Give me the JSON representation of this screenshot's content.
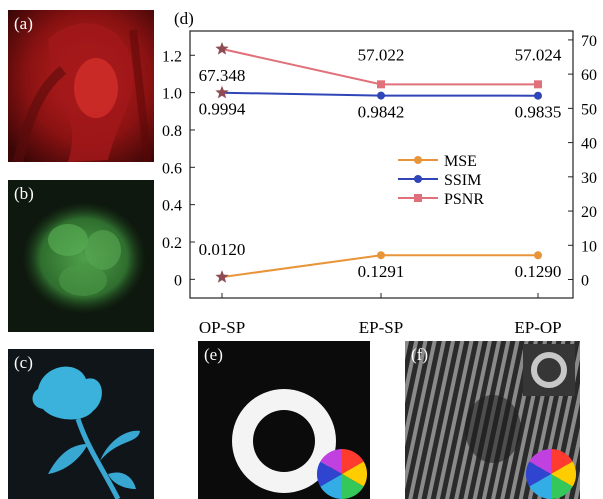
{
  "panels": {
    "a": {
      "label": "(a)",
      "picture": "red-lena-image"
    },
    "b": {
      "label": "(b)",
      "picture": "green-flower-image"
    },
    "c": {
      "label": "(c)",
      "picture": "cyan-rose-image"
    },
    "d": {
      "label": "(d)"
    },
    "e": {
      "label": "(e)",
      "picture": "white-ring-with-color-wheel"
    },
    "f": {
      "label": "(f)",
      "picture": "fringe-pattern-with-donut-inset-and-color-wheel"
    }
  },
  "chart_data": {
    "type": "line",
    "categories": [
      "OP-SP",
      "EP-SP",
      "EP-OP"
    ],
    "y_left": {
      "ticks": [
        "0",
        "0.2",
        "0.4",
        "0.6",
        "0.8",
        "1.0",
        "1.2"
      ],
      "range": [
        -0.1,
        1.33
      ]
    },
    "y_right": {
      "ticks": [
        "0",
        "10",
        "20",
        "30",
        "40",
        "50",
        "60",
        "70"
      ],
      "range": [
        -5.4,
        72.6
      ]
    },
    "grid": false,
    "legend_position": "middle-right",
    "series": [
      {
        "name": "MSE",
        "axis": "left",
        "color": "#e8953a",
        "values": [
          0.012,
          0.1291,
          0.129
        ],
        "labels": [
          "0.0120",
          "0.1291",
          "0.1290"
        ]
      },
      {
        "name": "SSIM",
        "axis": "left",
        "color": "#2f45b8",
        "values": [
          0.9994,
          0.9842,
          0.9835
        ],
        "labels": [
          "0.9994",
          "0.9842",
          "0.9835"
        ]
      },
      {
        "name": "PSNR",
        "axis": "right",
        "color": "#e0717a",
        "values": [
          67.348,
          57.022,
          57.024
        ],
        "labels": [
          "67.348",
          "57.022",
          "57.024"
        ]
      }
    ],
    "first_point_marker": {
      "shape": "star",
      "color": "#8e4b52"
    }
  }
}
